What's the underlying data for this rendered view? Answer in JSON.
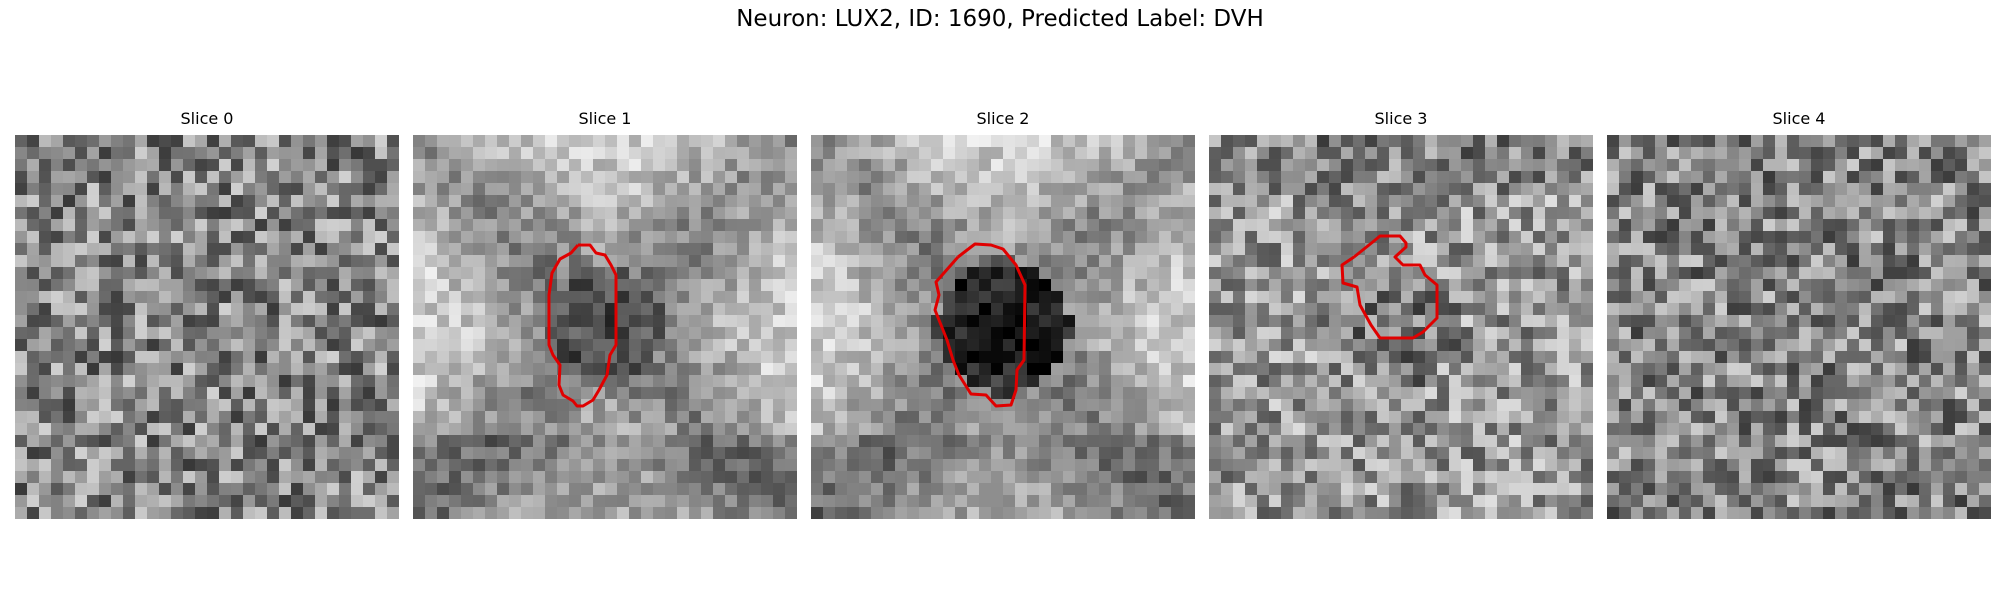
{
  "figure": {
    "title": "Neuron: LUX2, ID: 1690, Predicted Label: DVH"
  },
  "outline_color": "#e00000",
  "panels": [
    {
      "title": "Slice 0",
      "has_outline": false,
      "seed": 11,
      "dark_center": false,
      "pattern": "noise"
    },
    {
      "title": "Slice 1",
      "has_outline": true,
      "seed": 23,
      "dark_center": true,
      "pattern": "cross"
    },
    {
      "title": "Slice 2",
      "has_outline": true,
      "seed": 37,
      "dark_center": true,
      "pattern": "cross_dark"
    },
    {
      "title": "Slice 3",
      "has_outline": true,
      "seed": 41,
      "dark_center": true,
      "pattern": "mild"
    },
    {
      "title": "Slice 4",
      "has_outline": false,
      "seed": 53,
      "dark_center": false,
      "pattern": "noise"
    }
  ]
}
